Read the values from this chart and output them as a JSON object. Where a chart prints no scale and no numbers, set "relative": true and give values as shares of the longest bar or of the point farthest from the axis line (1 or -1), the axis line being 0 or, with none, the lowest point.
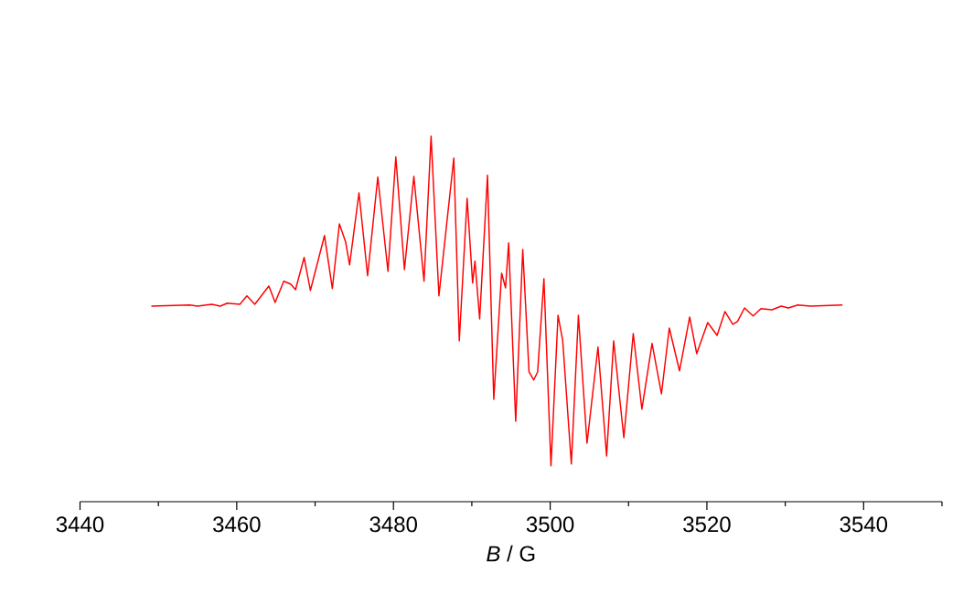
{
  "chart_data": {
    "type": "line",
    "xlabel": "*B* / G",
    "relative": true,
    "xlim": [
      3440,
      3550
    ],
    "xticks": [
      3440,
      {
        "value": 3450,
        "label": null
      },
      3460,
      {
        "value": 3470,
        "label": null
      },
      3480,
      {
        "value": 3490,
        "label": null
      },
      3500,
      {
        "value": 3510,
        "label": null
      },
      3520,
      {
        "value": 3530,
        "label": null
      },
      3540,
      {
        "value": 3550,
        "label": null
      }
    ],
    "x": [
      3449.1,
      3454.0,
      3455.0,
      3456.8,
      3457.9,
      3458.8,
      3460.4,
      3461.3,
      3462.3,
      3464.1,
      3464.9,
      3466.0,
      3466.9,
      3467.5,
      3468.6,
      3469.4,
      3471.2,
      3472.2,
      3473.1,
      3473.9,
      3474.4,
      3475.6,
      3476.7,
      3478.0,
      3479.3,
      3480.3,
      3481.4,
      3482.6,
      3483.9,
      3484.8,
      3485.8,
      3487.7,
      3488.4,
      3489.4,
      3490.1,
      3490.4,
      3491.0,
      3492.0,
      3492.8,
      3493.8,
      3494.3,
      3494.7,
      3495.6,
      3496.5,
      3497.3,
      3497.9,
      3498.4,
      3499.2,
      3500.1,
      3501.0,
      3501.6,
      3502.7,
      3503.6,
      3504.7,
      3506.1,
      3507.2,
      3508.1,
      3509.4,
      3510.6,
      3511.7,
      3513.0,
      3514.2,
      3515.2,
      3516.5,
      3517.8,
      3518.7,
      3520.1,
      3521.3,
      3522.3,
      3523.3,
      3523.9,
      3524.8,
      3525.9,
      3526.9,
      3528.3,
      3529.5,
      3530.4,
      3531.6,
      3533.2,
      3537.3
    ],
    "series": [
      {
        "color": "#ff0000",
        "values": [
          0.535,
          0.538,
          0.535,
          0.54,
          0.535,
          0.543,
          0.54,
          0.563,
          0.54,
          0.59,
          0.545,
          0.603,
          0.595,
          0.58,
          0.668,
          0.578,
          0.728,
          0.583,
          0.76,
          0.71,
          0.648,
          0.845,
          0.618,
          0.888,
          0.63,
          0.943,
          0.635,
          0.89,
          0.603,
          1.0,
          0.563,
          0.94,
          0.44,
          0.83,
          0.598,
          0.658,
          0.5,
          0.893,
          0.28,
          0.625,
          0.585,
          0.708,
          0.22,
          0.69,
          0.355,
          0.333,
          0.355,
          0.61,
          0.098,
          0.51,
          0.44,
          0.103,
          0.51,
          0.16,
          0.423,
          0.125,
          0.44,
          0.175,
          0.46,
          0.253,
          0.433,
          0.295,
          0.475,
          0.358,
          0.505,
          0.405,
          0.49,
          0.455,
          0.52,
          0.485,
          0.493,
          0.53,
          0.508,
          0.528,
          0.525,
          0.535,
          0.53,
          0.538,
          0.535,
          0.538
        ]
      }
    ]
  }
}
